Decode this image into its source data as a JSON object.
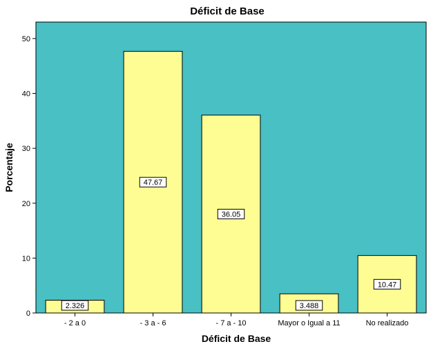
{
  "chart_data": {
    "type": "bar",
    "title": "Déficit de Base",
    "xlabel": "Déficit de Base",
    "ylabel": "Porcentaje",
    "categories": [
      "- 2 a 0",
      "- 3 a - 6",
      "- 7 a - 10",
      "Mayor o Igual a 11",
      "No realizado"
    ],
    "values": [
      2.326,
      47.67,
      36.05,
      3.488,
      10.47
    ],
    "data_labels": [
      "2.326",
      "47.67",
      "36.05",
      "3.488",
      "10.47"
    ],
    "ylim": [
      0,
      53
    ],
    "yticks": [
      0,
      10,
      20,
      30,
      40,
      50
    ],
    "grid": false,
    "colors": {
      "plot_background": "#48c0c4",
      "bar_fill": "#fdfd94",
      "bar_stroke": "#000000",
      "label_background": "#ffffff"
    }
  }
}
